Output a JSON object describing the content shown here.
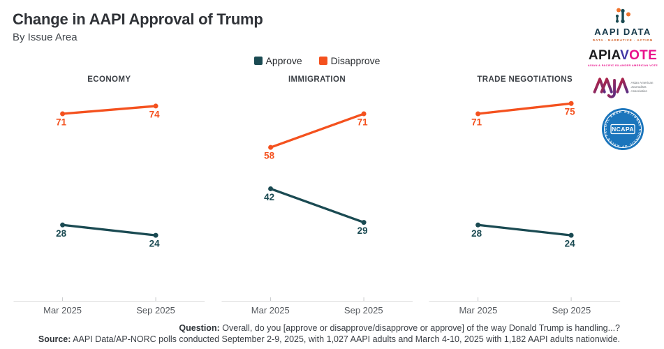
{
  "header": {
    "title": "Change in AAPI Approval of Trump",
    "subtitle": "By Issue Area"
  },
  "legend": {
    "items": [
      {
        "label": "Approve",
        "color": "#1A4A52"
      },
      {
        "label": "Disapprove",
        "color": "#F4511E"
      }
    ]
  },
  "chart_data": {
    "type": "line",
    "x_categories": [
      "Mar 2025",
      "Sep 2025"
    ],
    "ymax": 81,
    "grid": false,
    "legend_position": "top-center",
    "series_colors": {
      "Approve": "#1A4A52",
      "Disapprove": "#F4511E"
    },
    "panels": [
      {
        "title": "ECONOMY",
        "series": [
          {
            "name": "Disapprove",
            "values": [
              71,
              74
            ]
          },
          {
            "name": "Approve",
            "values": [
              28,
              24
            ]
          }
        ]
      },
      {
        "title": "IMMIGRATION",
        "series": [
          {
            "name": "Disapprove",
            "values": [
              58,
              71
            ]
          },
          {
            "name": "Approve",
            "values": [
              42,
              29
            ]
          }
        ]
      },
      {
        "title": "TRADE NEGOTIATIONS",
        "series": [
          {
            "name": "Disapprove",
            "values": [
              71,
              75
            ]
          },
          {
            "name": "Approve",
            "values": [
              28,
              24
            ]
          }
        ]
      }
    ]
  },
  "footer": {
    "question_label": "Question:",
    "question_text": " Overall, do you [approve or disapprove/disapprove or approve] of the way Donald Trump is handling...?",
    "source_label": "Source:",
    "source_text": " AAPI Data/AP-NORC polls conducted September 2-9, 2025, with 1,027 AAPI adults and March 4-10, 2025 with 1,182 AAPI adults nationwide."
  },
  "logos": {
    "aapi_data": {
      "text": "AAPI DATA",
      "tagline": "DATA · NARRATIVE · ACTION"
    },
    "apiavote": {
      "part1": "APIA",
      "part2": "V",
      "part3": "OTE",
      "tagline": "ASIAN & PACIFIC ISLANDER AMERICAN VOTE"
    },
    "aaja": {
      "lines": [
        "Asian American",
        "Journalists",
        "Association"
      ]
    },
    "ncapa": {
      "center": "NCAPA",
      "ring_text": "NATIONAL COUNCIL OF ASIAN PACIFIC AMERICANS"
    }
  }
}
